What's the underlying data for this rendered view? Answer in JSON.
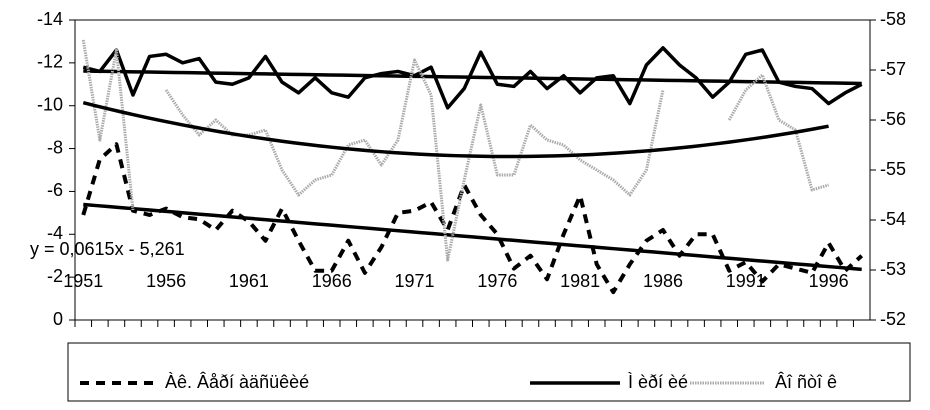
{
  "chart_data": {
    "type": "line",
    "annotation": "y = 0,0615x - 5,261",
    "x": [
      1951,
      1952,
      1953,
      1954,
      1955,
      1956,
      1957,
      1958,
      1959,
      1960,
      1961,
      1962,
      1963,
      1964,
      1965,
      1966,
      1967,
      1968,
      1969,
      1970,
      1971,
      1972,
      1973,
      1974,
      1975,
      1976,
      1977,
      1978,
      1979,
      1980,
      1981,
      1982,
      1983,
      1984,
      1985,
      1986,
      1987,
      1988,
      1989,
      1990,
      1991,
      1992,
      1993,
      1994,
      1995,
      1996,
      1997,
      1998
    ],
    "xlim": [
      1950.5,
      1998.5
    ],
    "xticks": [
      1951,
      1956,
      1961,
      1966,
      1971,
      1976,
      1981,
      1986,
      1991,
      1996
    ],
    "ylim": [
      0,
      -14
    ],
    "yticks": [
      0,
      -2,
      -4,
      -6,
      -8,
      -10,
      -12,
      -14
    ],
    "y2lim": [
      -52,
      -58
    ],
    "y2ticks": [
      -52,
      -53,
      -54,
      -55,
      -56,
      -57,
      -58
    ],
    "series": [
      {
        "name": "Àê. Âåðí àäñüêèé",
        "color": "#000000",
        "dash": "dash",
        "trend": "linear",
        "values": [
          -4.9,
          -7.5,
          -8.2,
          -5.1,
          -4.9,
          -5.2,
          -4.8,
          -4.7,
          -4.2,
          -5.1,
          -4.6,
          -3.7,
          -5.2,
          -3.7,
          -2.3,
          -2.3,
          -3.7,
          -2.2,
          -3.4,
          -5.0,
          -5.1,
          -5.5,
          -4.2,
          -6.3,
          -4.9,
          -4.0,
          -2.4,
          -3.0,
          -1.9,
          -4.0,
          -5.8,
          -2.6,
          -1.3,
          -2.6,
          -3.7,
          -4.2,
          -3.0,
          -4.0,
          -4.0,
          -2.3,
          -2.7,
          -1.8,
          -2.6,
          -2.4,
          -2.2,
          -3.6,
          -2.3,
          -3.0
        ]
      },
      {
        "name": "Ì èðí èé",
        "color": "#000000",
        "dash": "solid",
        "trend": "linear",
        "values": [
          -11.8,
          -11.6,
          -12.6,
          -10.5,
          -12.3,
          -12.4,
          -12.0,
          -12.2,
          -11.1,
          -11.0,
          -11.3,
          -12.3,
          -11.1,
          -10.6,
          -11.3,
          -10.6,
          -10.4,
          -11.3,
          -11.5,
          -11.6,
          -11.4,
          -11.8,
          -9.9,
          -10.8,
          -12.5,
          -11.0,
          -10.9,
          -11.6,
          -10.8,
          -11.4,
          -10.6,
          -11.3,
          -11.4,
          -10.1,
          -11.9,
          -12.7,
          -11.9,
          -11.3,
          -10.4,
          -11.1,
          -12.4,
          -12.6,
          -11.1,
          -10.9,
          -10.8,
          -10.1,
          -10.6,
          -11.0
        ]
      },
      {
        "name": "Âî ñòî ê",
        "color": "#aaaaaa",
        "dash": "dot",
        "axis": "y2",
        "trend": "poly2",
        "values": [
          -57.6,
          -55.6,
          -57.4,
          -54.2,
          null,
          -56.6,
          -56.1,
          -55.7,
          -56.0,
          -55.7,
          -55.7,
          -55.8,
          -55.0,
          -54.5,
          -54.8,
          -54.9,
          -55.5,
          -55.6,
          -55.1,
          -55.6,
          -57.2,
          -56.5,
          -53.2,
          -54.8,
          -56.3,
          -54.9,
          -54.9,
          -55.9,
          -55.6,
          -55.5,
          -55.2,
          -55.0,
          -54.8,
          -54.5,
          -55.0,
          -56.6,
          null,
          null,
          null,
          -56.0,
          -56.6,
          -56.9,
          -56.0,
          -55.8,
          -54.6,
          -54.7,
          null,
          null
        ]
      }
    ]
  }
}
